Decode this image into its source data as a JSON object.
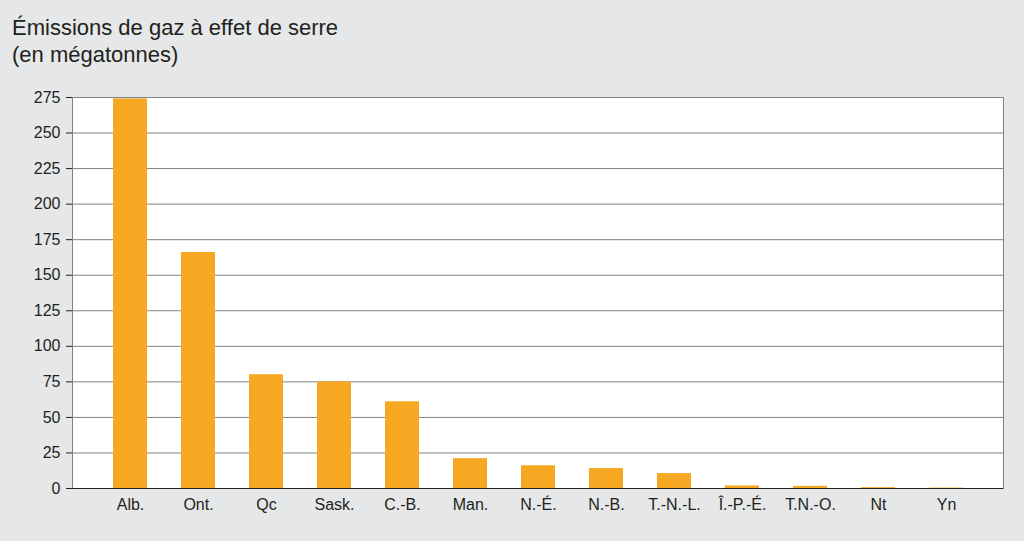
{
  "chart_data": {
    "type": "bar",
    "title": "Émissions de gaz à effet de serre",
    "subtitle": "(en mégatonnes)",
    "categories": [
      "Alb.",
      "Ont.",
      "Qc",
      "Sask.",
      "C.-B.",
      "Man.",
      "N.-É.",
      "N.-B.",
      "T.-N.-L.",
      "Î.-P.-É.",
      "T.N.-O.",
      "Nt",
      "Yn"
    ],
    "values": [
      274,
      166,
      80,
      75,
      61,
      21,
      16,
      14,
      10.5,
      1.8,
      1.5,
      0.6,
      0.3
    ],
    "color": "#f7a823",
    "ylim": [
      0,
      275
    ],
    "yticks": [
      0,
      25,
      50,
      75,
      100,
      125,
      150,
      175,
      200,
      225,
      250,
      275
    ],
    "grid": true
  }
}
